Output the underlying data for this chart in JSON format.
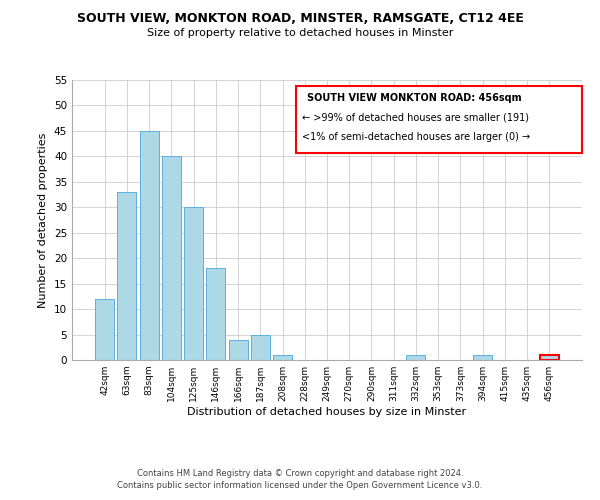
{
  "title": "SOUTH VIEW, MONKTON ROAD, MINSTER, RAMSGATE, CT12 4EE",
  "subtitle": "Size of property relative to detached houses in Minster",
  "xlabel": "Distribution of detached houses by size in Minster",
  "ylabel": "Number of detached properties",
  "bar_labels": [
    "42sqm",
    "63sqm",
    "83sqm",
    "104sqm",
    "125sqm",
    "146sqm",
    "166sqm",
    "187sqm",
    "208sqm",
    "228sqm",
    "249sqm",
    "270sqm",
    "290sqm",
    "311sqm",
    "332sqm",
    "353sqm",
    "373sqm",
    "394sqm",
    "415sqm",
    "435sqm",
    "456sqm"
  ],
  "bar_values": [
    12,
    33,
    45,
    40,
    30,
    18,
    4,
    5,
    1,
    0,
    0,
    0,
    0,
    0,
    1,
    0,
    0,
    1,
    0,
    0,
    1
  ],
  "bar_color": "#add8e6",
  "bar_edge_color": "#5aafe0",
  "highlight_index": 20,
  "highlight_edge_color": "#ff0000",
  "box_text_line1": "SOUTH VIEW MONKTON ROAD: 456sqm",
  "box_text_line2": "← >99% of detached houses are smaller (191)",
  "box_text_line3": "<1% of semi-detached houses are larger (0) →",
  "box_edge_color": "#ff0000",
  "ylim": [
    0,
    55
  ],
  "yticks": [
    0,
    5,
    10,
    15,
    20,
    25,
    30,
    35,
    40,
    45,
    50,
    55
  ],
  "footer_line1": "Contains HM Land Registry data © Crown copyright and database right 2024.",
  "footer_line2": "Contains public sector information licensed under the Open Government Licence v3.0."
}
